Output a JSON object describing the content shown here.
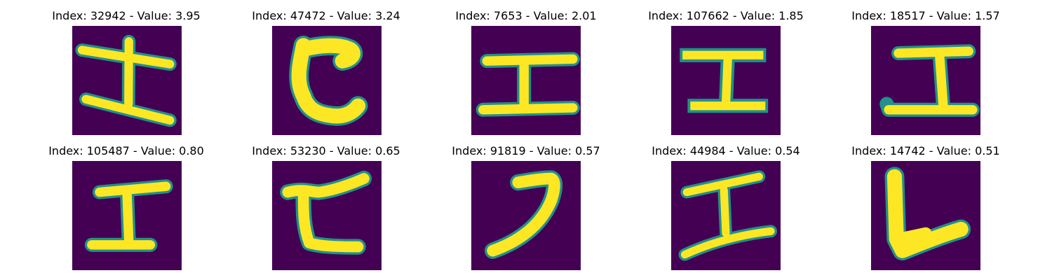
{
  "figure": {
    "panels": [
      {
        "title": "Index: 32942 - Value: 3.95",
        "glyph": "tilted-i-glyph"
      },
      {
        "title": "Index: 47472 - Value: 3.24",
        "glyph": "c-glyph"
      },
      {
        "title": "Index: 7653 - Value: 2.01",
        "glyph": "i-glyph"
      },
      {
        "title": "Index: 107662 - Value: 1.85",
        "glyph": "i-glyph"
      },
      {
        "title": "Index: 18517 - Value: 1.57",
        "glyph": "i-glyph"
      },
      {
        "title": "Index: 105487 - Value: 0.80",
        "glyph": "i-glyph"
      },
      {
        "title": "Index: 53230 - Value: 0.65",
        "glyph": "c-glyph"
      },
      {
        "title": "Index: 91819 - Value: 0.57",
        "glyph": "hook-glyph"
      },
      {
        "title": "Index: 44984 - Value: 0.54",
        "glyph": "i-glyph"
      },
      {
        "title": "Index: 14742 - Value: 0.51",
        "glyph": "l-glyph"
      }
    ],
    "colors": {
      "background": "#440154",
      "stroke": "#fde725",
      "edge": "#21918c"
    }
  }
}
